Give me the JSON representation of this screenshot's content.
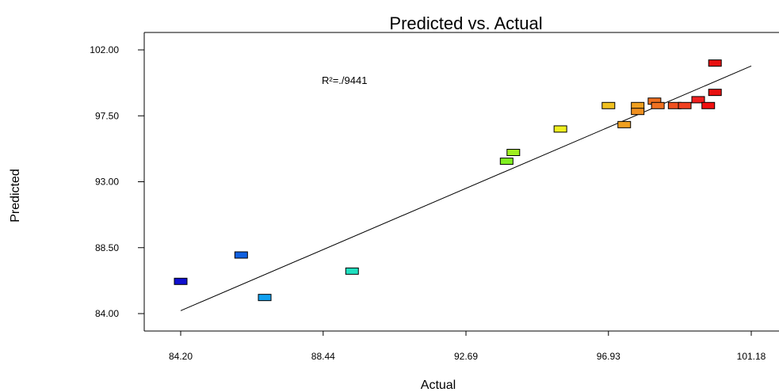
{
  "chart_data": {
    "type": "scatter",
    "title": "Predicted vs. Actual",
    "xlabel": "Actual",
    "ylabel": "Predicted",
    "annotation": "R²=./9441",
    "xlim": [
      83.2,
      101.18
    ],
    "ylim": [
      83.1,
      103.2
    ],
    "xticks": [
      84.2,
      88.44,
      92.69,
      96.93,
      101.18
    ],
    "xtick_labels": [
      "84.20",
      "88.44",
      "92.69",
      "96.93",
      "101.18"
    ],
    "yticks": [
      84.0,
      88.5,
      93.0,
      97.5,
      102.0
    ],
    "ytick_labels": [
      "84.00",
      "88.50",
      "93.00",
      "97.50",
      "102.00"
    ],
    "fit_line": {
      "x": [
        84.2,
        101.18
      ],
      "y": [
        84.2,
        100.9
      ]
    },
    "points": [
      {
        "x": 84.2,
        "y": 86.2,
        "color": "#1010d0"
      },
      {
        "x": 86.0,
        "y": 88.0,
        "color": "#1060e0"
      },
      {
        "x": 86.7,
        "y": 85.1,
        "color": "#10a0f0"
      },
      {
        "x": 89.3,
        "y": 86.9,
        "color": "#20e0c0"
      },
      {
        "x": 93.9,
        "y": 94.4,
        "color": "#80f020"
      },
      {
        "x": 94.1,
        "y": 95.0,
        "color": "#a0f020"
      },
      {
        "x": 95.5,
        "y": 96.6,
        "color": "#f0f020"
      },
      {
        "x": 96.93,
        "y": 98.2,
        "color": "#f0c020"
      },
      {
        "x": 97.4,
        "y": 96.9,
        "color": "#f0a020"
      },
      {
        "x": 97.8,
        "y": 98.2,
        "color": "#f0a020"
      },
      {
        "x": 97.8,
        "y": 97.8,
        "color": "#f09020"
      },
      {
        "x": 98.3,
        "y": 98.5,
        "color": "#f07020"
      },
      {
        "x": 98.4,
        "y": 98.2,
        "color": "#f07020"
      },
      {
        "x": 98.9,
        "y": 98.2,
        "color": "#f05020"
      },
      {
        "x": 99.2,
        "y": 98.2,
        "color": "#f04020"
      },
      {
        "x": 99.6,
        "y": 98.6,
        "color": "#f02020"
      },
      {
        "x": 99.9,
        "y": 98.2,
        "color": "#f01010"
      },
      {
        "x": 100.1,
        "y": 99.1,
        "color": "#e81010"
      },
      {
        "x": 100.1,
        "y": 101.1,
        "color": "#e81010"
      }
    ]
  }
}
